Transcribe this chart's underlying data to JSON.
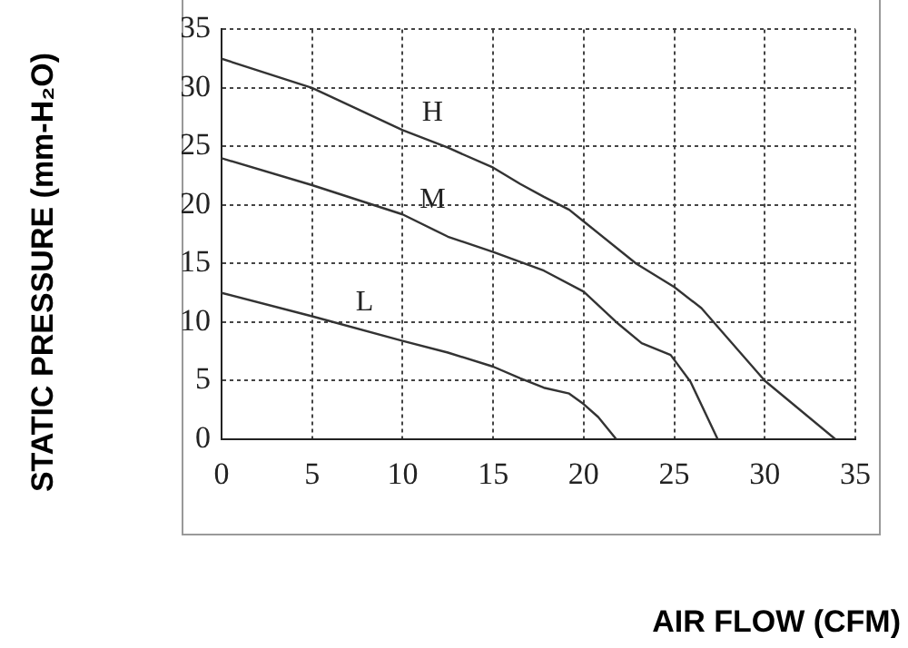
{
  "chart_data": {
    "type": "line",
    "xlabel": "AIR FLOW (CFM)",
    "ylabel": "STATIC PRESSURE (mm-H₂O)",
    "xlim": [
      0,
      35
    ],
    "xticks": [
      0,
      5,
      10,
      15,
      20,
      25,
      30,
      35
    ],
    "ylim": [
      0,
      35
    ],
    "yticks": [
      0,
      5,
      10,
      15,
      20,
      25,
      30,
      35
    ],
    "grid": true,
    "marker": "none",
    "line_style": "solid",
    "series": [
      {
        "name": "H",
        "color": "#333333",
        "x": [
          0,
          5,
          10,
          12.5,
          15,
          16.5,
          17.8,
          19.2,
          20,
          22.9,
          25,
          26.5,
          30,
          33.9
        ],
        "values": [
          32.5,
          30.0,
          26.4,
          24.9,
          23.2,
          21.8,
          20.7,
          19.6,
          18.6,
          15.0,
          13.0,
          11.2,
          5.0,
          0
        ]
      },
      {
        "name": "M",
        "color": "#333333",
        "x": [
          0,
          5,
          10,
          12.5,
          15,
          17.8,
          20,
          21.8,
          23.2,
          24.8,
          25.9,
          27.4
        ],
        "values": [
          24.0,
          21.7,
          19.2,
          17.3,
          16.0,
          14.4,
          12.6,
          10.0,
          8.2,
          7.2,
          4.9,
          0
        ]
      },
      {
        "name": "L",
        "color": "#333333",
        "x": [
          0,
          5,
          10,
          12.5,
          15,
          16.5,
          17.8,
          19.2,
          20,
          20.8,
          21.8
        ],
        "values": [
          12.5,
          10.5,
          8.4,
          7.4,
          6.2,
          5.2,
          4.4,
          3.9,
          3.0,
          1.9,
          0
        ]
      }
    ]
  }
}
